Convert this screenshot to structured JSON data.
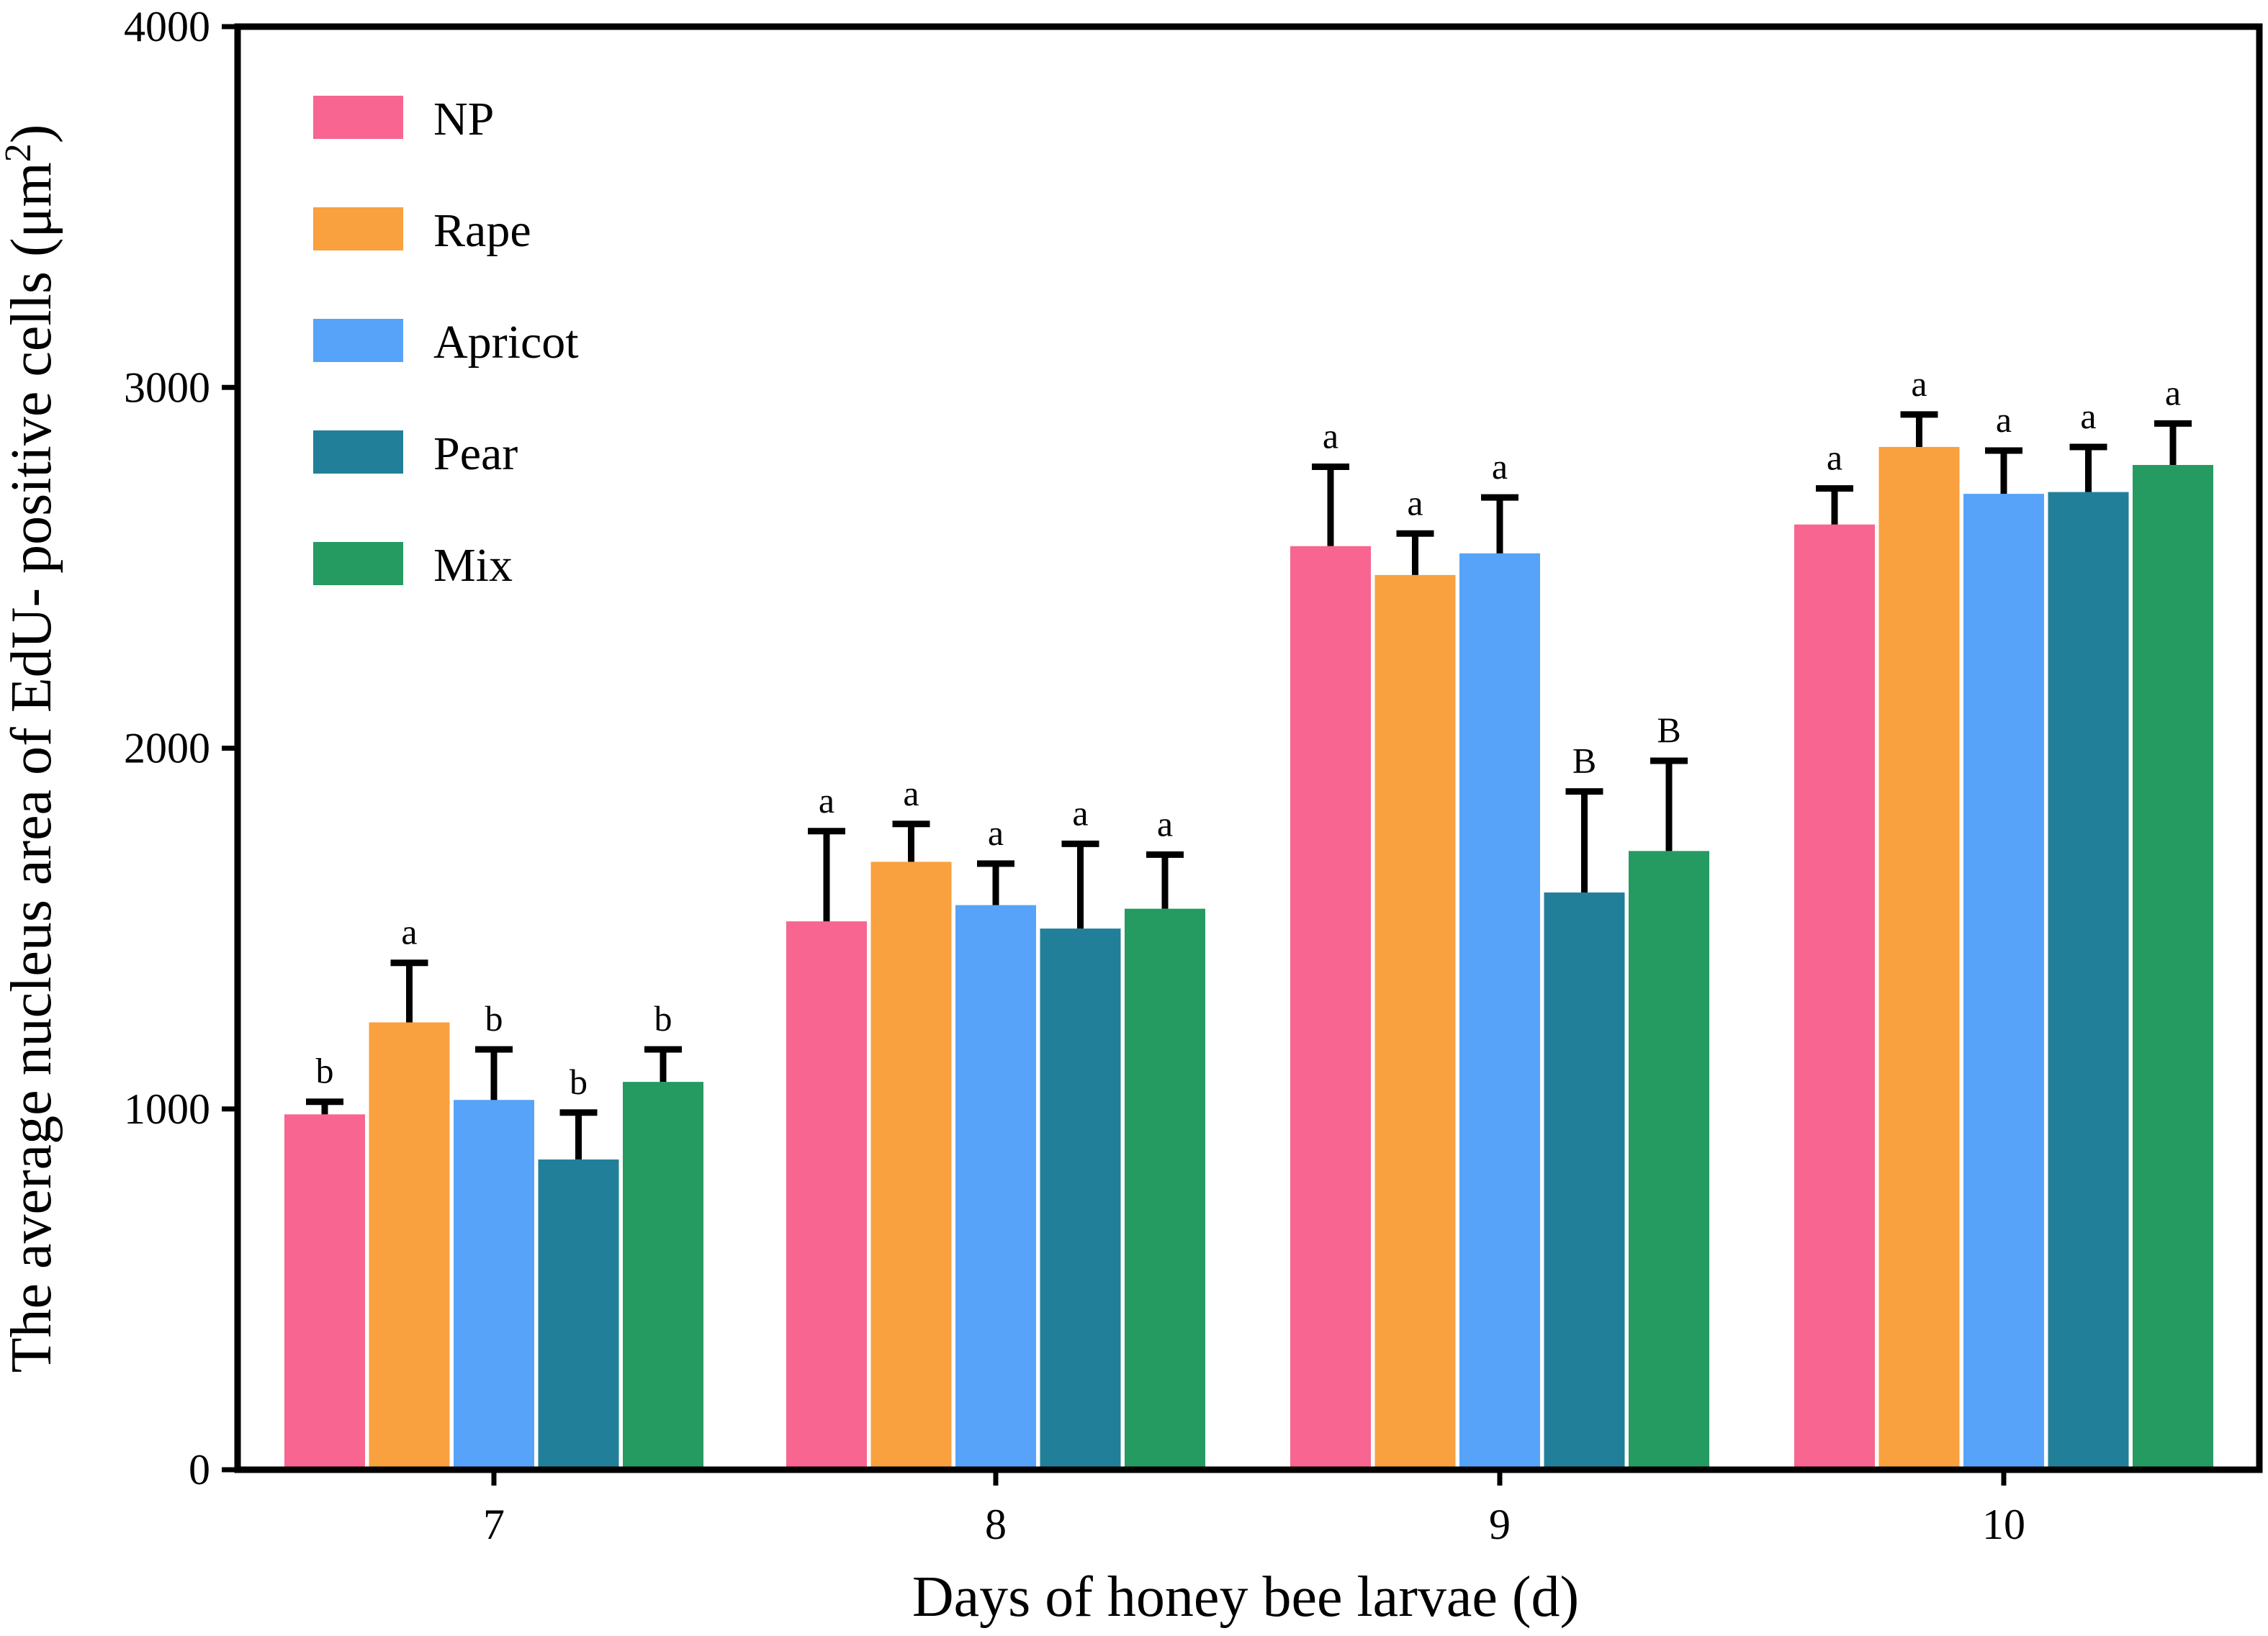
{
  "chart_data": {
    "type": "bar",
    "title": "",
    "xlabel": "Days of honey bee larvae (d)",
    "ylabel": "The average nucleus area of EdU- positive cells (μm²)",
    "ylabel_main": "The average nucleus area of EdU- positive cells (μm",
    "ylabel_sup": "2",
    "ylabel_close": ")",
    "ylim": [
      0,
      4000
    ],
    "yticks": [
      "0",
      "1000",
      "2000",
      "3000",
      "4000"
    ],
    "ytick_values": [
      0,
      1000,
      2000,
      3000,
      4000
    ],
    "categories": [
      "7",
      "8",
      "9",
      "10"
    ],
    "legend_position": "top-left",
    "series": [
      {
        "name": "NP",
        "color": "#F76590",
        "values": [
          985,
          1520,
          2560,
          2620
        ],
        "errors": [
          35,
          250,
          220,
          100
        ],
        "labels": [
          "b",
          "a",
          "a",
          "a"
        ]
      },
      {
        "name": "Rape",
        "color": "#F9A03F",
        "values": [
          1240,
          1685,
          2480,
          2835
        ],
        "errors": [
          165,
          105,
          115,
          90
        ],
        "labels": [
          "a",
          "a",
          "a",
          "a"
        ]
      },
      {
        "name": "Apricot",
        "color": "#56A3F9",
        "values": [
          1025,
          1565,
          2540,
          2705
        ],
        "errors": [
          140,
          115,
          155,
          120
        ],
        "labels": [
          "b",
          "a",
          "a",
          "a"
        ]
      },
      {
        "name": "Pear",
        "color": "#227F9A",
        "values": [
          860,
          1500,
          1600,
          2710
        ],
        "errors": [
          130,
          235,
          280,
          125
        ],
        "labels": [
          "b",
          "a",
          "B",
          "a"
        ]
      },
      {
        "name": "Mix",
        "color": "#259A61",
        "values": [
          1075,
          1555,
          1715,
          2785
        ],
        "errors": [
          90,
          150,
          250,
          115
        ],
        "labels": [
          "b",
          "a",
          "B",
          "a"
        ]
      }
    ]
  }
}
